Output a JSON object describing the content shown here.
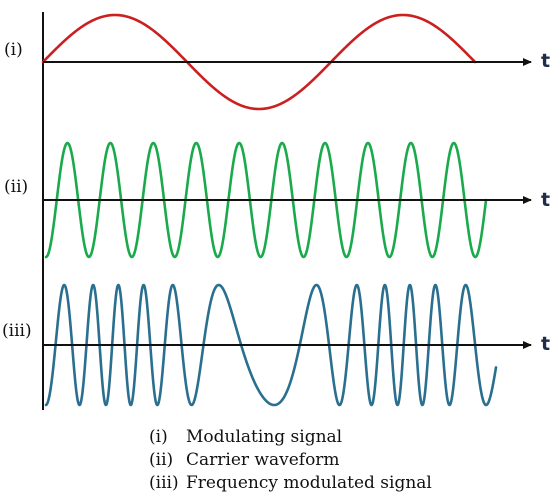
{
  "panels": [
    {
      "id": "i",
      "label": "(i)",
      "axis_label": "t",
      "color": "#cc1f1f",
      "signal": "modulating"
    },
    {
      "id": "ii",
      "label": "(ii)",
      "axis_label": "t",
      "color": "#1aaa4b",
      "signal": "carrier"
    },
    {
      "id": "iii",
      "label": "(iii)",
      "axis_label": "t",
      "color": "#2a6f8f",
      "signal": "frequency-modulated"
    }
  ],
  "legend": [
    {
      "key": "(i)",
      "text": "Modulating signal"
    },
    {
      "key": "(ii)",
      "text": "Carrier waveform"
    },
    {
      "key": "(iii)",
      "text": "Frequency modulated signal"
    }
  ],
  "colors": {
    "modulating": "#cc1f1f",
    "carrier": "#1aaa4b",
    "fm": "#2a6f8f",
    "axis": "#111111",
    "axis_label": "#1f2d4a"
  }
}
